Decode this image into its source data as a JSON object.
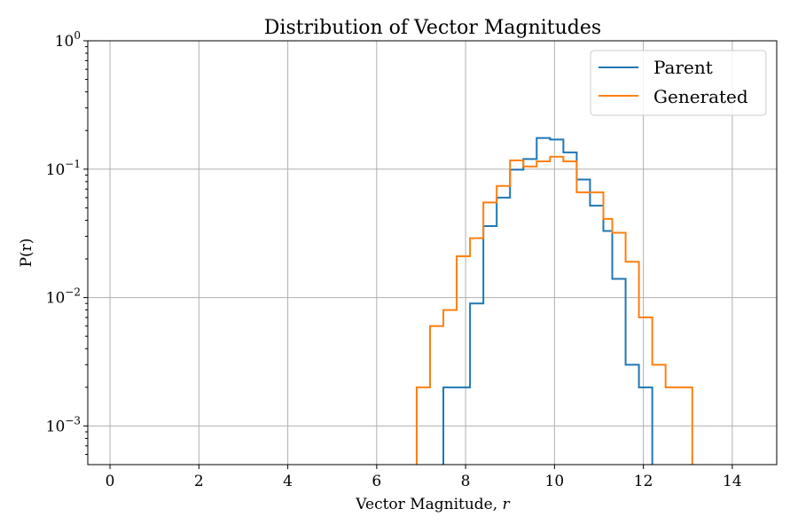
{
  "chart_data": {
    "type": "line",
    "drawstyle": "steps",
    "title": "Distribution of Vector Magnitudes",
    "xlabel": "Vector Magnitude, ",
    "xlabel_var": "r",
    "ylabel": "P(r)",
    "xlim": [
      -0.5,
      15
    ],
    "ylim": [
      0.0005,
      1
    ],
    "yscale": "log",
    "grid": true,
    "legend_position": "upper right",
    "x_ticks": [
      0,
      2,
      4,
      6,
      8,
      10,
      12,
      14
    ],
    "x_tick_labels": [
      "0",
      "2",
      "4",
      "6",
      "8",
      "10",
      "12",
      "14"
    ],
    "y_ticks": [
      0.001,
      0.01,
      0.1,
      1
    ],
    "y_tick_labels": [
      {
        "base": "10",
        "exp": "−3"
      },
      {
        "base": "10",
        "exp": "−2"
      },
      {
        "base": "10",
        "exp": "−1"
      },
      {
        "base": "10",
        "exp": "0"
      }
    ],
    "series": [
      {
        "name": "Parent",
        "color": "#1f77b4",
        "bin_edges": [
          7.5,
          8.1,
          8.4,
          8.7,
          9.0,
          9.3,
          9.6,
          9.9,
          10.2,
          10.5,
          10.8,
          11.1,
          11.3,
          11.6,
          11.9,
          12.2
        ],
        "values": [
          0.002,
          0.009,
          0.036,
          0.06,
          0.099,
          0.12,
          0.175,
          0.17,
          0.135,
          0.083,
          0.052,
          0.033,
          0.014,
          0.003,
          0.002
        ]
      },
      {
        "name": "Generated",
        "color": "#ff7f0e",
        "bin_edges": [
          6.9,
          7.2,
          7.5,
          7.8,
          8.1,
          8.4,
          8.7,
          9.0,
          9.3,
          9.6,
          9.9,
          10.2,
          10.5,
          10.8,
          11.1,
          11.3,
          11.6,
          11.9,
          12.2,
          12.5,
          13.1
        ],
        "values": [
          0.002,
          0.006,
          0.008,
          0.021,
          0.029,
          0.055,
          0.074,
          0.117,
          0.105,
          0.115,
          0.125,
          0.115,
          0.066,
          0.066,
          0.041,
          0.032,
          0.019,
          0.007,
          0.003,
          0.002
        ]
      }
    ]
  }
}
